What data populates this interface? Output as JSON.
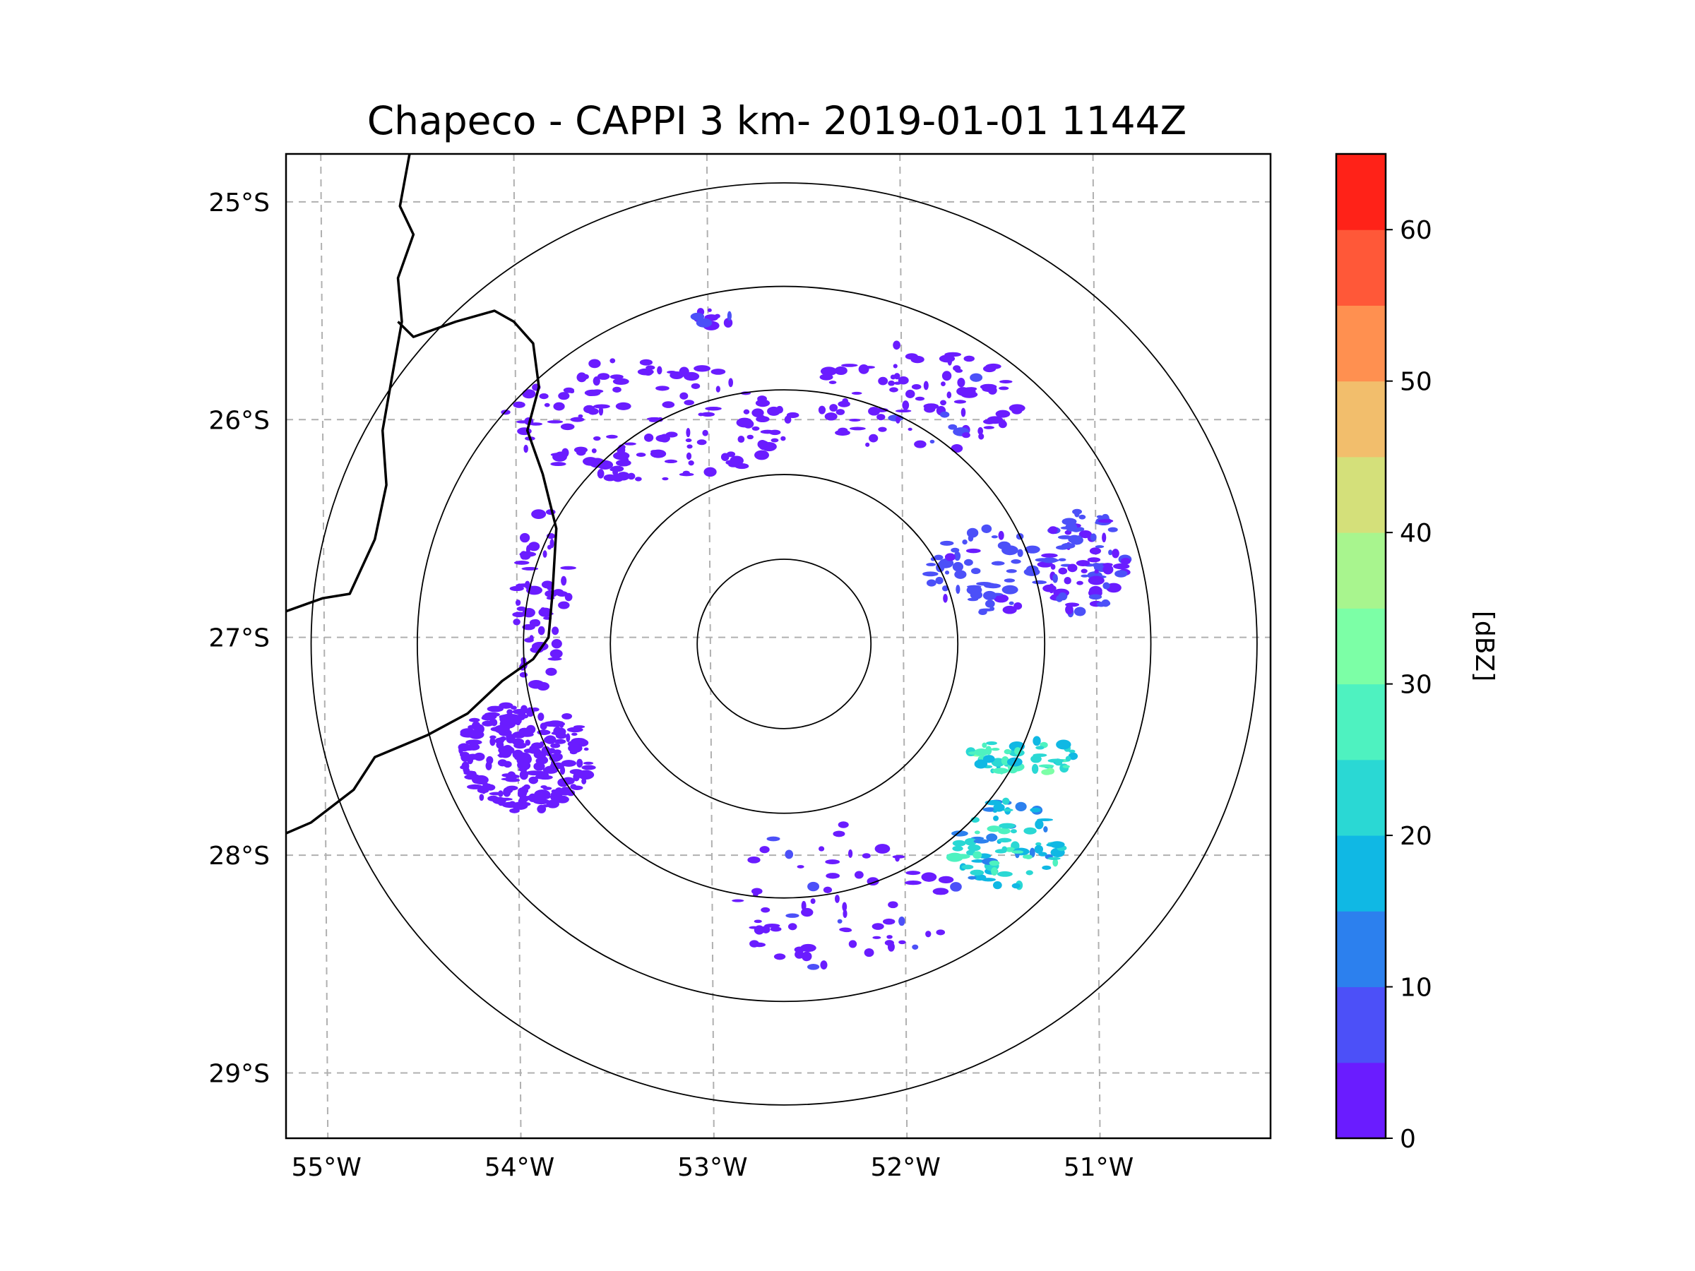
{
  "title": "Chapeco - CAPPI 3 km- 2019-01-01 1144Z",
  "map": {
    "projection": "lat-lon",
    "lon_range": [
      -55.18,
      -50.08
    ],
    "lat_range": [
      -29.3,
      -24.78
    ],
    "radar_center": {
      "lon": -52.6,
      "lat": -27.03
    },
    "range_ring_degrees": [
      0.45,
      0.9,
      1.35,
      1.9,
      2.45
    ],
    "lat_ticks": [
      {
        "value": -25,
        "label": "25°S"
      },
      {
        "value": -26,
        "label": "26°S"
      },
      {
        "value": -27,
        "label": "27°S"
      },
      {
        "value": -28,
        "label": "28°S"
      },
      {
        "value": -29,
        "label": "29°S"
      }
    ],
    "lon_ticks": [
      {
        "value": -55,
        "label": "55°W"
      },
      {
        "value": -54,
        "label": "54°W"
      },
      {
        "value": -53,
        "label": "53°W"
      },
      {
        "value": -52,
        "label": "52°W"
      },
      {
        "value": -51,
        "label": "51°W"
      }
    ],
    "borders": {
      "argentina_brazil": [
        [
          -54.54,
          -24.78
        ],
        [
          -54.59,
          -25.02
        ],
        [
          -54.52,
          -25.15
        ],
        [
          -54.6,
          -25.35
        ],
        [
          -54.58,
          -25.55
        ],
        [
          -54.63,
          -25.8
        ],
        [
          -54.68,
          -26.05
        ],
        [
          -54.66,
          -26.3
        ],
        [
          -54.72,
          -26.55
        ],
        [
          -54.85,
          -26.8
        ],
        [
          -54.99,
          -26.82
        ],
        [
          -55.18,
          -26.88
        ]
      ],
      "parana_santa_catarina": [
        [
          -54.6,
          -25.55
        ],
        [
          -54.52,
          -25.62
        ],
        [
          -54.3,
          -25.55
        ],
        [
          -54.1,
          -25.5
        ],
        [
          -54.0,
          -25.55
        ],
        [
          -53.9,
          -25.65
        ],
        [
          -53.87,
          -25.85
        ],
        [
          -53.93,
          -26.05
        ],
        [
          -53.85,
          -26.25
        ],
        [
          -53.78,
          -26.5
        ],
        [
          -53.8,
          -26.8
        ],
        [
          -53.82,
          -27.0
        ],
        [
          -53.9,
          -27.1
        ],
        [
          -54.06,
          -27.2
        ],
        [
          -54.24,
          -27.35
        ],
        [
          -54.45,
          -27.45
        ],
        [
          -54.72,
          -27.55
        ],
        [
          -54.83,
          -27.7
        ],
        [
          -55.05,
          -27.85
        ],
        [
          -55.18,
          -27.9
        ]
      ]
    }
  },
  "chart_data": {
    "type": "heatmap",
    "title": "Chapeco - CAPPI 3 km- 2019-01-01 1144Z",
    "xlabel": "",
    "ylabel": "",
    "colorbar": {
      "label": "[dBZ]",
      "range": [
        0,
        65
      ],
      "levels": [
        0,
        5,
        10,
        15,
        20,
        25,
        30,
        35,
        40,
        45,
        50,
        55,
        60,
        65
      ],
      "colors": [
        "#6a1cff",
        "#4c50f8",
        "#2c80ee",
        "#10b8e4",
        "#2ad8d4",
        "#4ef2c0",
        "#7cffa6",
        "#a8f58e",
        "#d4e07a",
        "#f2be6c",
        "#ff9050",
        "#ff5838",
        "#ff2218"
      ],
      "ticks": [
        {
          "value": 0,
          "label": "0"
        },
        {
          "value": 10,
          "label": "10"
        },
        {
          "value": 20,
          "label": "20"
        },
        {
          "value": 30,
          "label": "30"
        },
        {
          "value": 40,
          "label": "40"
        },
        {
          "value": 50,
          "label": "50"
        },
        {
          "value": 60,
          "label": "60"
        }
      ]
    },
    "echo_regions": [
      {
        "name": "northwest-band",
        "lon": -53.3,
        "lat": -26.0,
        "rlon": 0.75,
        "rlat": 0.28,
        "dbz": 2,
        "count": 140
      },
      {
        "name": "north-top-cell",
        "lon": -52.97,
        "lat": -25.53,
        "rlon": 0.12,
        "rlat": 0.04,
        "dbz": 4,
        "count": 12
      },
      {
        "name": "northeast-band",
        "lon": -51.9,
        "lat": -25.9,
        "rlon": 0.55,
        "rlat": 0.25,
        "dbz": 3,
        "count": 90
      },
      {
        "name": "east-cluster",
        "lon": -51.05,
        "lat": -26.65,
        "rlon": 0.22,
        "rlat": 0.25,
        "dbz": 5,
        "count": 90
      },
      {
        "name": "east-middle",
        "lon": -51.55,
        "lat": -26.7,
        "rlon": 0.3,
        "rlat": 0.2,
        "dbz": 6,
        "count": 60
      },
      {
        "name": "west-dense",
        "lon": -53.95,
        "lat": -27.55,
        "rlon": 0.35,
        "rlat": 0.25,
        "dbz": 2,
        "count": 220
      },
      {
        "name": "west-strip",
        "lon": -53.85,
        "lat": -26.85,
        "rlon": 0.15,
        "rlat": 0.45,
        "dbz": 2,
        "count": 60
      },
      {
        "name": "southeast-band",
        "lon": -51.35,
        "lat": -27.55,
        "rlon": 0.3,
        "rlat": 0.08,
        "dbz": 22,
        "count": 50
      },
      {
        "name": "southeast-cells",
        "lon": -51.45,
        "lat": -27.95,
        "rlon": 0.3,
        "rlat": 0.2,
        "dbz": 18,
        "count": 80
      },
      {
        "name": "south-scatter",
        "lon": -52.3,
        "lat": -28.2,
        "rlon": 0.6,
        "rlat": 0.35,
        "dbz": 3,
        "count": 70
      }
    ]
  }
}
